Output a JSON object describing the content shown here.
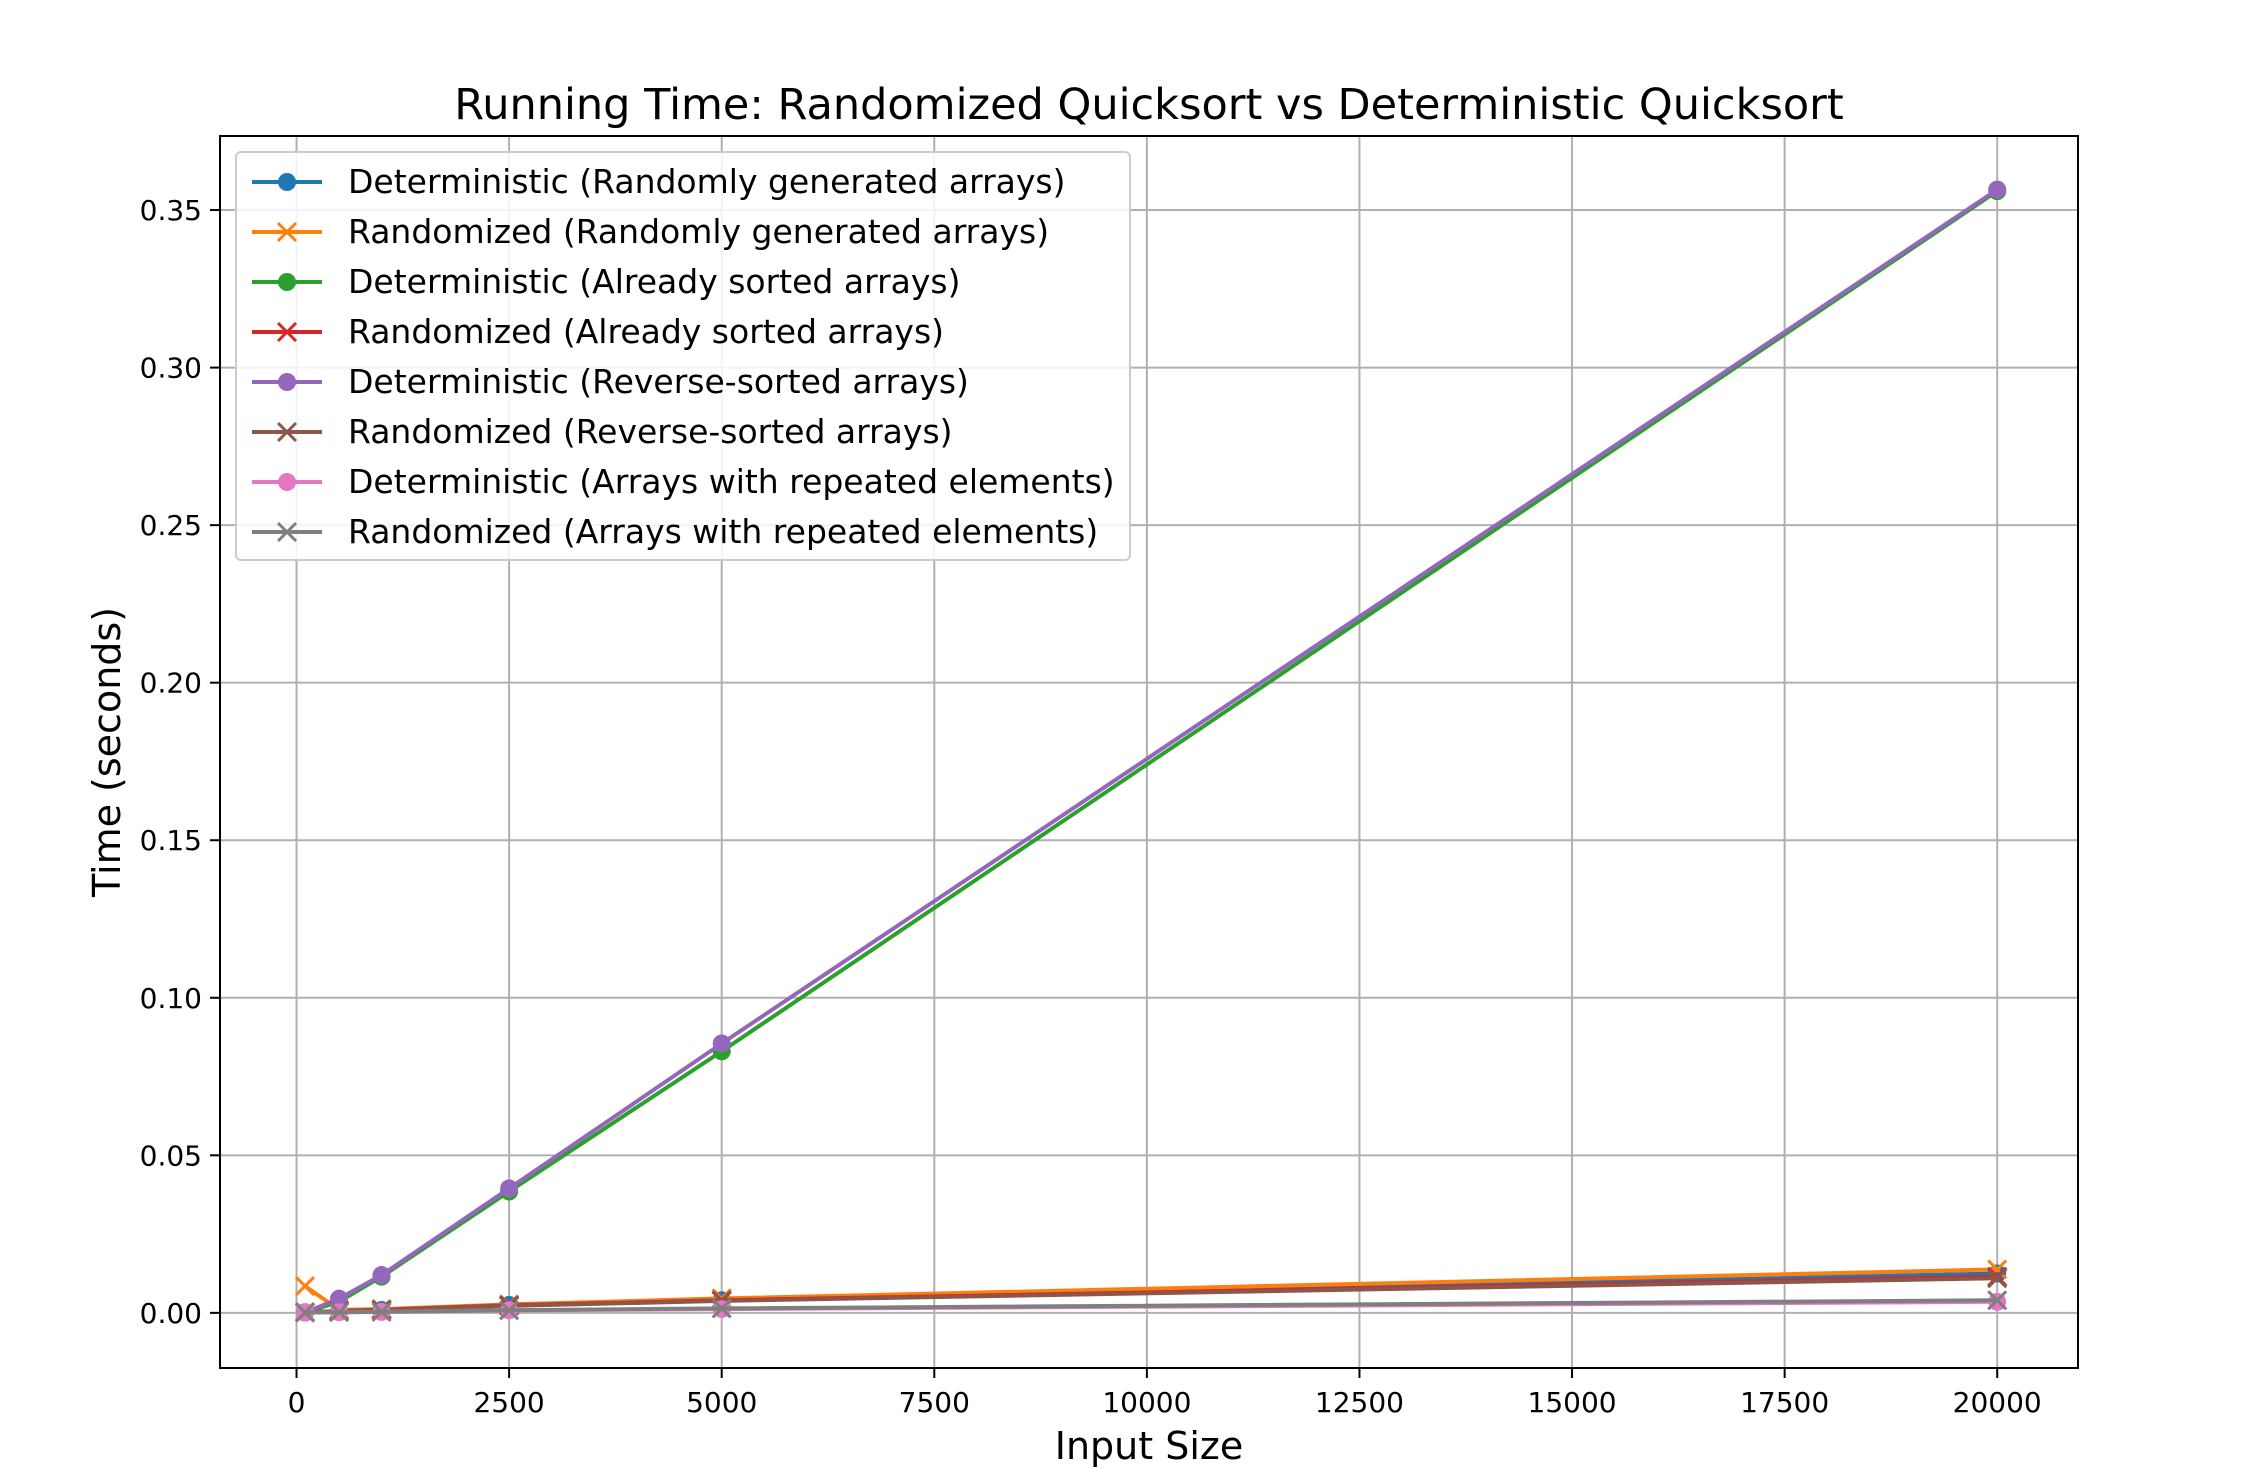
{
  "chart_data": {
    "type": "line",
    "title": "Running Time: Randomized Quicksort vs Deterministic Quicksort",
    "xlabel": "Input Size",
    "ylabel": "Time (seconds)",
    "x": [
      100,
      500,
      1000,
      2500,
      5000,
      20000
    ],
    "xlim": [
      -900,
      20950
    ],
    "ylim": [
      -0.0175,
      0.3735
    ],
    "xticks": [
      0,
      2500,
      5000,
      7500,
      10000,
      12500,
      15000,
      17500,
      20000
    ],
    "yticks": [
      0.0,
      0.05,
      0.1,
      0.15,
      0.2,
      0.25,
      0.3,
      0.35
    ],
    "xtick_labels": [
      "0",
      "2500",
      "5000",
      "7500",
      "10000",
      "12500",
      "15000",
      "17500",
      "20000"
    ],
    "ytick_labels": [
      "0.00",
      "0.05",
      "0.10",
      "0.15",
      "0.20",
      "0.25",
      "0.30",
      "0.35"
    ],
    "grid": true,
    "legend_position": "top-left",
    "series": [
      {
        "name": "Deterministic (Randomly generated arrays)",
        "color": "#1f77b4",
        "marker": "circle",
        "values": [
          0.0002,
          0.0005,
          0.0009,
          0.0025,
          0.004,
          0.0125
        ]
      },
      {
        "name": "Randomized (Randomly generated arrays)",
        "color": "#ff7f0e",
        "marker": "x",
        "values": [
          0.0085,
          0.001,
          0.0012,
          0.0027,
          0.0046,
          0.0138
        ]
      },
      {
        "name": "Deterministic (Already sorted arrays)",
        "color": "#2ca02c",
        "marker": "circle",
        "values": [
          0.0001,
          0.0035,
          0.0115,
          0.0385,
          0.083,
          0.356
        ]
      },
      {
        "name": "Randomized (Already sorted arrays)",
        "color": "#d62728",
        "marker": "x",
        "values": [
          0.0002,
          0.0006,
          0.001,
          0.0024,
          0.004,
          0.0115
        ]
      },
      {
        "name": "Deterministic (Reverse-sorted arrays)",
        "color": "#9467bd",
        "marker": "circle",
        "values": [
          0.0001,
          0.0045,
          0.012,
          0.0395,
          0.0855,
          0.3565
        ]
      },
      {
        "name": "Randomized (Reverse-sorted arrays)",
        "color": "#8c564b",
        "marker": "x",
        "values": [
          0.0002,
          0.0005,
          0.0009,
          0.0022,
          0.0038,
          0.011
        ]
      },
      {
        "name": "Deterministic (Arrays with repeated elements)",
        "color": "#e377c2",
        "marker": "circle",
        "values": [
          0.0001,
          0.0002,
          0.0003,
          0.0008,
          0.0012,
          0.0035
        ]
      },
      {
        "name": "Randomized (Arrays with repeated elements)",
        "color": "#7f7f7f",
        "marker": "x",
        "values": [
          0.0001,
          0.0002,
          0.0003,
          0.0008,
          0.0014,
          0.004
        ]
      }
    ]
  }
}
